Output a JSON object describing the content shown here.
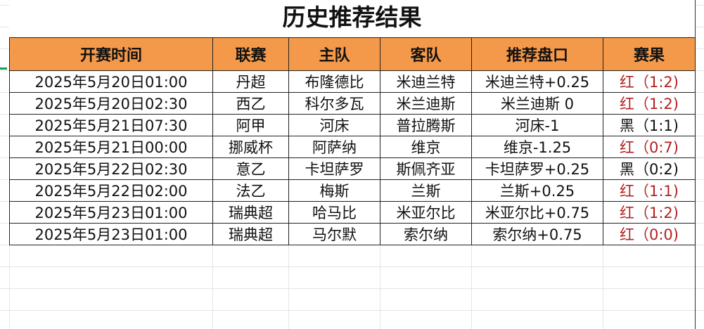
{
  "title": "历史推荐结果",
  "headers": [
    "开赛时间",
    "联赛",
    "主队",
    "客队",
    "推荐盘口",
    "赛果"
  ],
  "colors": {
    "header_bg": "#f4994a",
    "win": "#b22222",
    "loss": "#111111"
  },
  "rows": [
    {
      "time": "2025年5月20日01:00",
      "league": "丹超",
      "home": "布隆德比",
      "away": "米迪兰特",
      "pick": "米迪兰特+0.25",
      "result": "红（1:2)",
      "outcome": "red"
    },
    {
      "time": "2025年5月20日02:30",
      "league": "西乙",
      "home": "科尔多瓦",
      "away": "米兰迪斯",
      "pick": "米兰迪斯 0",
      "result": "红（1:2)",
      "outcome": "red"
    },
    {
      "time": "2025年5月21日07:30",
      "league": "阿甲",
      "home": "河床",
      "away": "普拉腾斯",
      "pick": "河床-1",
      "result": "黑（1:1)",
      "outcome": "black"
    },
    {
      "time": "2025年5月21日00:00",
      "league": "挪威杯",
      "home": "阿萨纳",
      "away": "维京",
      "pick": "维京-1.25",
      "result": "红（0:7)",
      "outcome": "red"
    },
    {
      "time": "2025年5月22日02:30",
      "league": "意乙",
      "home": "卡坦萨罗",
      "away": "斯佩齐亚",
      "pick": "卡坦萨罗+0.25",
      "result": "黑（0:2)",
      "outcome": "black"
    },
    {
      "time": "2025年5月22日02:00",
      "league": "法乙",
      "home": "梅斯",
      "away": "兰斯",
      "pick": "兰斯+0.25",
      "result": "红（1:1)",
      "outcome": "red"
    },
    {
      "time": "2025年5月23日01:00",
      "league": "瑞典超",
      "home": "哈马比",
      "away": "米亚尔比",
      "pick": "米亚尔比+0.75",
      "result": "红（1:2)",
      "outcome": "red"
    },
    {
      "time": "2025年5月23日01:00",
      "league": "瑞典超",
      "home": "马尔默",
      "away": "索尔纳",
      "pick": "索尔纳+0.75",
      "result": "红（0:0)",
      "outcome": "red"
    }
  ]
}
